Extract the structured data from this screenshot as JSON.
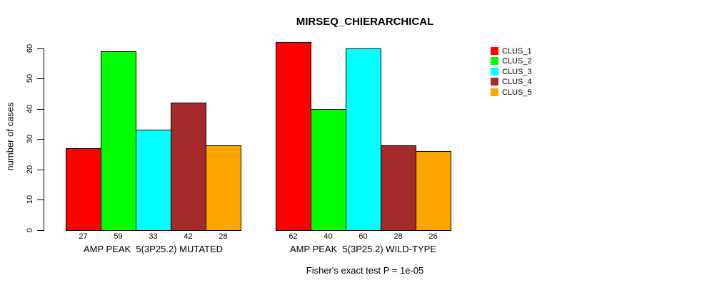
{
  "title": "MIRSEQ_CHIERARCHICAL",
  "caption": "Fisher's exact test P = 1e-05",
  "chart_data": {
    "type": "bar",
    "title": "MIRSEQ_CHIERARCHICAL",
    "xlabel": "",
    "ylabel": "number of cases",
    "caption": "Fisher's exact test P = 1e-05",
    "ylim": [
      0,
      62
    ],
    "yticks": [
      0,
      10,
      20,
      30,
      40,
      50,
      60
    ],
    "grid": false,
    "bar_value_labels_shown": true,
    "legend_position": "right-outside",
    "legend_entries": [
      "CLUS_1",
      "CLUS_2",
      "CLUS_3",
      "CLUS_4",
      "CLUS_5"
    ],
    "categories": [
      "AMP PEAK  5(3P25.2) MUTATED",
      "AMP PEAK  5(3P25.2) WILD-TYPE"
    ],
    "series": [
      {
        "name": "CLUS_1",
        "color": "#FF0000",
        "values": [
          27,
          62
        ]
      },
      {
        "name": "CLUS_2",
        "color": "#00FF00",
        "values": [
          59,
          40
        ]
      },
      {
        "name": "CLUS_3",
        "color": "#00FFFF",
        "values": [
          33,
          60
        ]
      },
      {
        "name": "CLUS_4",
        "color": "#A52A2A",
        "values": [
          42,
          28
        ]
      },
      {
        "name": "CLUS_5",
        "color": "#FFA500",
        "values": [
          28,
          26
        ]
      }
    ],
    "colors": {
      "CLUS_1": "#FF0000",
      "CLUS_2": "#00FF00",
      "CLUS_3": "#00FFFF",
      "CLUS_4": "#A52A2A",
      "CLUS_5": "#FFA500",
      "axis": "#000000",
      "background": "#FFFFFF"
    }
  }
}
